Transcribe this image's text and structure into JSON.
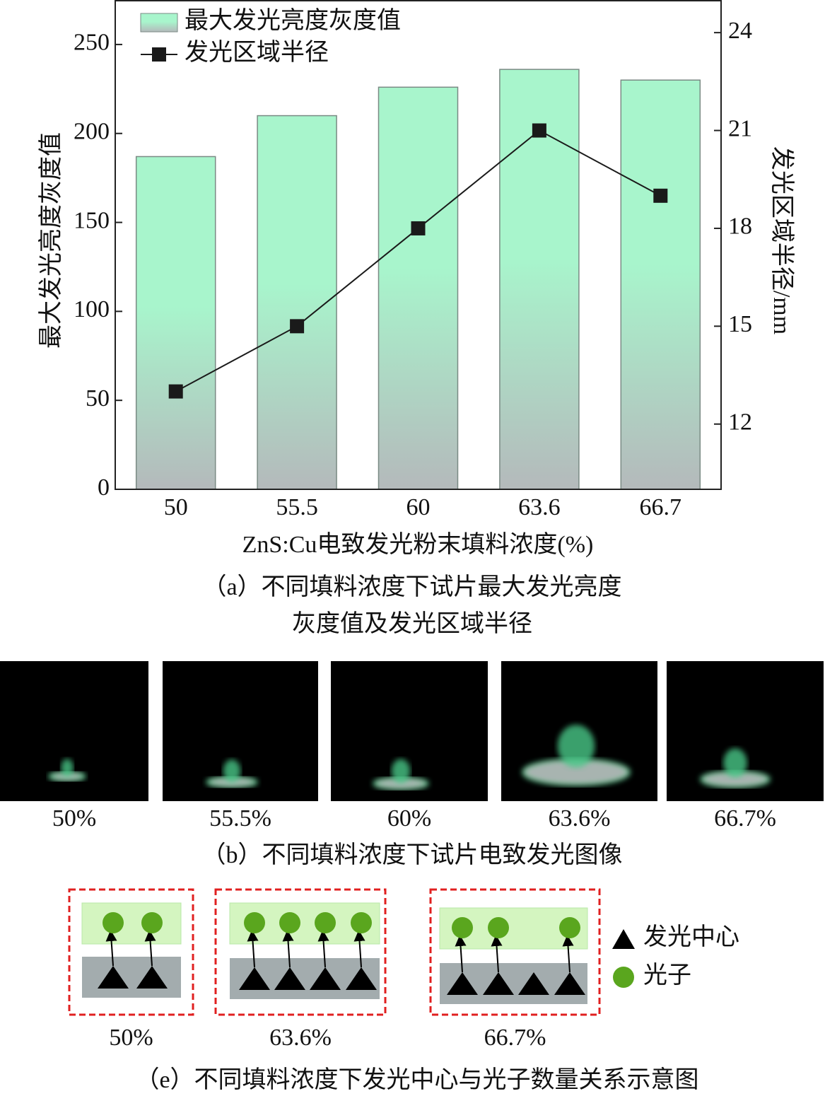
{
  "chart_data": {
    "type": "bar-line",
    "categories": [
      "50",
      "55.5",
      "60",
      "63.6",
      "66.7"
    ],
    "series": [
      {
        "name": "最大发光亮度灰度值",
        "type": "bar",
        "color": "#a8f5cc",
        "values": [
          187,
          210,
          226,
          236,
          230
        ]
      },
      {
        "name": "发光区域半径",
        "type": "line",
        "axis": "y2",
        "color": "#1a1a1a",
        "values": [
          13,
          15,
          18,
          21,
          19
        ]
      }
    ],
    "y_label": "最大发光亮度灰度值",
    "y2_label": "发光区域半径/mm",
    "x_label": "ZnS:Cu电致发光粉末填料浓度(%)",
    "ylim": [
      0,
      275
    ],
    "yticks": [
      0,
      50,
      100,
      150,
      200,
      250
    ],
    "y2lim": [
      10,
      25
    ],
    "y2ticks": [
      12,
      15,
      18,
      21,
      24
    ],
    "legend": "upper left"
  },
  "caption_a": [
    "（a）不同填料浓度下试片最大发光亮度",
    "灰度值及发光区域半径"
  ],
  "images": {
    "labels": [
      "50%",
      "55.5%",
      "60%",
      "63.6%",
      "66.7%"
    ],
    "caption": "（b）不同填料浓度下试片电致发光图像"
  },
  "diagram": {
    "labels": [
      "50%",
      "63.6%",
      "66.7%"
    ],
    "legend": [
      "发光中心",
      "光子"
    ],
    "caption": "（e）不同填料浓度下发光中心与光子数量关系示意图"
  }
}
